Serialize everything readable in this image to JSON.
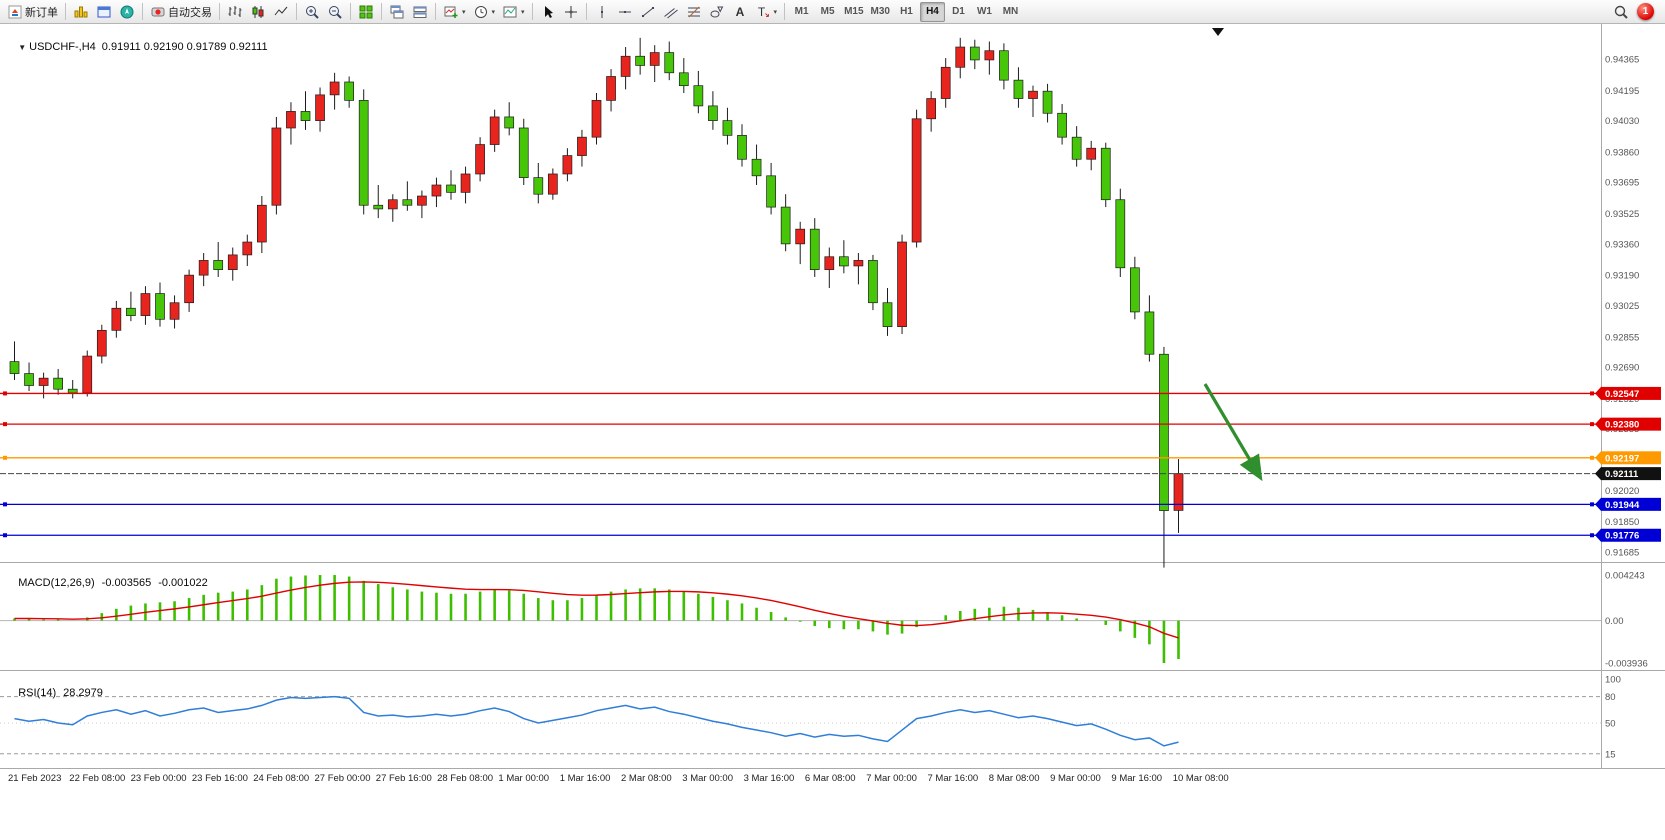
{
  "toolbar": {
    "groups": [
      {
        "items": [
          {
            "name": "new-order-button",
            "icon": "new-order-icon",
            "label": "新订单"
          }
        ]
      },
      {
        "items": [
          {
            "name": "market-watch-button",
            "icon": "market-watch-icon"
          },
          {
            "name": "data-window-button",
            "icon": "data-window-icon"
          },
          {
            "name": "navigator-button",
            "icon": "navigator-icon"
          }
        ]
      },
      {
        "items": [
          {
            "name": "autotrading-button",
            "icon": "autotrading-icon",
            "label": "自动交易"
          }
        ]
      },
      {
        "items": [
          {
            "name": "bar-chart-button",
            "icon": "bar-chart-icon"
          },
          {
            "name": "candlestick-chart-button",
            "icon": "candlestick-icon"
          },
          {
            "name": "line-chart-button",
            "icon": "line-chart-icon"
          }
        ]
      },
      {
        "items": [
          {
            "name": "zoom-in-button",
            "icon": "zoom-in-icon"
          },
          {
            "name": "zoom-out-button",
            "icon": "zoom-out-icon"
          }
        ]
      },
      {
        "items": [
          {
            "name": "tile-windows-button",
            "icon": "tile-windows-icon"
          }
        ]
      },
      {
        "items": [
          {
            "name": "arrange-windows-button",
            "icon": "arrange-windows-icon"
          },
          {
            "name": "cascade-windows-button",
            "icon": "cascade-windows-icon"
          }
        ]
      },
      {
        "items": [
          {
            "name": "new-chart-button",
            "icon": "new-chart-icon",
            "dropdown": true
          },
          {
            "name": "profiles-button",
            "icon": "clock-icon",
            "dropdown": true
          },
          {
            "name": "templates-button",
            "icon": "template-icon",
            "dropdown": true
          }
        ]
      },
      {
        "items": [
          {
            "name": "cursor-button",
            "icon": "cursor-icon"
          },
          {
            "name": "crosshair-button",
            "icon": "crosshair-icon"
          }
        ]
      },
      {
        "items": [
          {
            "name": "vertical-line-button",
            "icon": "vertical-line-icon"
          },
          {
            "name": "horizontal-line-button",
            "icon": "horizontal-line-icon"
          },
          {
            "name": "trendline-button",
            "icon": "trendline-icon"
          },
          {
            "name": "channel-button",
            "icon": "channel-icon"
          },
          {
            "name": "fibonacci-button",
            "icon": "fibonacci-icon"
          },
          {
            "name": "shapes-button",
            "icon": "shapes-icon"
          },
          {
            "name": "text-button",
            "icon": "text-icon"
          },
          {
            "name": "arrow-label-button",
            "icon": "label-icon",
            "dropdown": true
          }
        ]
      }
    ],
    "timeframes": {
      "labels": [
        "M1",
        "M5",
        "M15",
        "M30",
        "H1",
        "H4",
        "D1",
        "W1",
        "MN"
      ],
      "active": "H4"
    },
    "right": {
      "search_icon": "search-icon",
      "notification_count": "1"
    }
  },
  "chart": {
    "header": {
      "collapse_icon": "▼",
      "symbol": "USDCHF-,H4",
      "open": "0.91911",
      "high": "0.92190",
      "low": "0.91789",
      "close": "0.92111"
    },
    "price_axis": {
      "ticks": [
        "0.94365",
        "0.94195",
        "0.94030",
        "0.93860",
        "0.93695",
        "0.93525",
        "0.93360",
        "0.93190",
        "0.93025",
        "0.92855",
        "0.92690",
        "0.92520",
        "0.92355",
        "0.92185",
        "0.92020",
        "0.91850",
        "0.91685"
      ]
    },
    "levels": [
      {
        "price": 0.92547,
        "label": "0.92547",
        "color": "#e10000"
      },
      {
        "price": 0.9238,
        "label": "0.92380",
        "color": "#e10000"
      },
      {
        "price": 0.92197,
        "label": "0.92197",
        "color": "#ff9900"
      },
      {
        "price": 0.91944,
        "label": "0.91944",
        "color": "#0000d6"
      },
      {
        "price": 0.91776,
        "label": "0.91776",
        "color": "#0000d6"
      }
    ],
    "current_price": {
      "value": 0.92111,
      "label": "0.92111",
      "color": "#111111"
    },
    "annotations": {
      "arrow": {
        "type": "trend-arrow",
        "direction": "down-right",
        "color": "#2f8f2f"
      },
      "top_marker": {
        "symbol": "▼",
        "color": "#111111"
      }
    },
    "time_axis": [
      "21 Feb 2023",
      "22 Feb 08:00",
      "23 Feb 00:00",
      "23 Feb 16:00",
      "24 Feb 08:00",
      "27 Feb 00:00",
      "27 Feb 16:00",
      "28 Feb 08:00",
      "1 Mar 00:00",
      "1 Mar 16:00",
      "2 Mar 08:00",
      "3 Mar 00:00",
      "3 Mar 16:00",
      "6 Mar 08:00",
      "7 Mar 00:00",
      "7 Mar 16:00",
      "8 Mar 08:00",
      "9 Mar 00:00",
      "9 Mar 16:00",
      "10 Mar 08:00"
    ]
  },
  "indicators": {
    "macd": {
      "name": "MACD(12,26,9)",
      "main_value": "-0.003565",
      "signal_value": "-0.001022",
      "axis": [
        "0.004243",
        "0.00",
        "-0.003936"
      ]
    },
    "rsi": {
      "name": "RSI(14)",
      "value": "28.2979",
      "axis": [
        "100",
        "80",
        "50",
        "15"
      ]
    }
  },
  "chart_data": [
    {
      "type": "candlestick",
      "symbol": "USDCHF",
      "timeframe": "H4",
      "bull_color": "#e8241f",
      "bear_color": "#46c509",
      "price_range": [
        0.91685,
        0.94365
      ],
      "ohlc": [
        [
          0.9272,
          0.9283,
          0.9262,
          0.92655
        ],
        [
          0.92655,
          0.92715,
          0.9256,
          0.9259
        ],
        [
          0.9259,
          0.9266,
          0.9252,
          0.9263
        ],
        [
          0.9263,
          0.9268,
          0.9254,
          0.9257
        ],
        [
          0.9257,
          0.9262,
          0.9252,
          0.9255
        ],
        [
          0.9255,
          0.9278,
          0.9253,
          0.9275
        ],
        [
          0.9275,
          0.9292,
          0.9271,
          0.9289
        ],
        [
          0.9289,
          0.9305,
          0.9285,
          0.9301
        ],
        [
          0.9301,
          0.931,
          0.9294,
          0.9297
        ],
        [
          0.9297,
          0.9313,
          0.9292,
          0.9309
        ],
        [
          0.9309,
          0.9315,
          0.9291,
          0.9295
        ],
        [
          0.9295,
          0.9308,
          0.929,
          0.9304
        ],
        [
          0.9304,
          0.9322,
          0.9299,
          0.9319
        ],
        [
          0.9319,
          0.9331,
          0.9313,
          0.9327
        ],
        [
          0.9327,
          0.9337,
          0.9318,
          0.9322
        ],
        [
          0.9322,
          0.9334,
          0.9316,
          0.933
        ],
        [
          0.933,
          0.9341,
          0.9324,
          0.9337
        ],
        [
          0.9337,
          0.9362,
          0.9331,
          0.9357
        ],
        [
          0.9357,
          0.9405,
          0.9352,
          0.9399
        ],
        [
          0.9399,
          0.9413,
          0.939,
          0.9408
        ],
        [
          0.9408,
          0.9419,
          0.9398,
          0.9403
        ],
        [
          0.9403,
          0.9421,
          0.9397,
          0.9417
        ],
        [
          0.9417,
          0.9429,
          0.9409,
          0.9424
        ],
        [
          0.9424,
          0.9427,
          0.941,
          0.9414
        ],
        [
          0.9414,
          0.942,
          0.9352,
          0.9357
        ],
        [
          0.9357,
          0.9368,
          0.935,
          0.9355
        ],
        [
          0.9355,
          0.9363,
          0.9348,
          0.936
        ],
        [
          0.936,
          0.937,
          0.9354,
          0.9357
        ],
        [
          0.9357,
          0.9365,
          0.935,
          0.9362
        ],
        [
          0.9362,
          0.9372,
          0.9356,
          0.9368
        ],
        [
          0.9368,
          0.9376,
          0.936,
          0.9364
        ],
        [
          0.9364,
          0.9378,
          0.9358,
          0.9374
        ],
        [
          0.9374,
          0.9394,
          0.937,
          0.939
        ],
        [
          0.939,
          0.9409,
          0.9386,
          0.9405
        ],
        [
          0.9405,
          0.9413,
          0.9395,
          0.9399
        ],
        [
          0.9399,
          0.9404,
          0.9368,
          0.9372
        ],
        [
          0.9372,
          0.938,
          0.9358,
          0.9363
        ],
        [
          0.9363,
          0.9377,
          0.936,
          0.9374
        ],
        [
          0.9374,
          0.9388,
          0.937,
          0.9384
        ],
        [
          0.9384,
          0.9398,
          0.9378,
          0.9394
        ],
        [
          0.9394,
          0.9418,
          0.939,
          0.9414
        ],
        [
          0.9414,
          0.9431,
          0.9408,
          0.9427
        ],
        [
          0.9427,
          0.9443,
          0.942,
          0.9438
        ],
        [
          0.9438,
          0.9448,
          0.9428,
          0.9433
        ],
        [
          0.9433,
          0.9444,
          0.9424,
          0.944
        ],
        [
          0.944,
          0.9446,
          0.9425,
          0.9429
        ],
        [
          0.9429,
          0.9437,
          0.9418,
          0.9422
        ],
        [
          0.9422,
          0.943,
          0.9407,
          0.9411
        ],
        [
          0.9411,
          0.9419,
          0.9398,
          0.9403
        ],
        [
          0.9403,
          0.941,
          0.939,
          0.9395
        ],
        [
          0.9395,
          0.9401,
          0.9378,
          0.9382
        ],
        [
          0.9382,
          0.939,
          0.9368,
          0.9373
        ],
        [
          0.9373,
          0.938,
          0.9352,
          0.9356
        ],
        [
          0.9356,
          0.9363,
          0.9332,
          0.9336
        ],
        [
          0.9336,
          0.9348,
          0.9325,
          0.9344
        ],
        [
          0.9344,
          0.935,
          0.9318,
          0.9322
        ],
        [
          0.9322,
          0.9334,
          0.9312,
          0.9329
        ],
        [
          0.9329,
          0.9338,
          0.932,
          0.9324
        ],
        [
          0.9324,
          0.9331,
          0.9314,
          0.9327
        ],
        [
          0.9327,
          0.933,
          0.93,
          0.9304
        ],
        [
          0.9304,
          0.9312,
          0.9286,
          0.9291
        ],
        [
          0.9291,
          0.9341,
          0.9287,
          0.9337
        ],
        [
          0.9337,
          0.9409,
          0.9334,
          0.9404
        ],
        [
          0.9404,
          0.9419,
          0.9397,
          0.9415
        ],
        [
          0.9415,
          0.9437,
          0.941,
          0.9432
        ],
        [
          0.9432,
          0.9448,
          0.9426,
          0.9443
        ],
        [
          0.9443,
          0.9447,
          0.9431,
          0.9436
        ],
        [
          0.9436,
          0.9446,
          0.9428,
          0.9441
        ],
        [
          0.9441,
          0.9445,
          0.942,
          0.9425
        ],
        [
          0.9425,
          0.9432,
          0.941,
          0.9415
        ],
        [
          0.9415,
          0.9422,
          0.9405,
          0.9419
        ],
        [
          0.9419,
          0.9423,
          0.9402,
          0.9407
        ],
        [
          0.9407,
          0.9412,
          0.939,
          0.9394
        ],
        [
          0.9394,
          0.94,
          0.9378,
          0.9382
        ],
        [
          0.9382,
          0.9392,
          0.9376,
          0.9388
        ],
        [
          0.9388,
          0.9391,
          0.9356,
          0.936
        ],
        [
          0.936,
          0.9366,
          0.9318,
          0.9323
        ],
        [
          0.9323,
          0.9329,
          0.9295,
          0.9299
        ],
        [
          0.9299,
          0.9308,
          0.9272,
          0.9276
        ],
        [
          0.9276,
          0.928,
          0.916,
          0.9191
        ],
        [
          0.91911,
          0.9219,
          0.91789,
          0.92111
        ]
      ]
    },
    {
      "type": "bar",
      "name": "MACD histogram",
      "params": "12,26,9",
      "histogram_color": "#3dbf00",
      "signal_color": "#e00000",
      "current_main": -0.003565,
      "current_signal": -0.001022,
      "ylim": [
        -0.003936,
        0.004243
      ],
      "values": [
        0.0002,
        0.0002,
        0.0001,
        0.0001,
        0,
        0.0003,
        0.0007,
        0.0011,
        0.0014,
        0.0016,
        0.0017,
        0.0018,
        0.0021,
        0.0024,
        0.0026,
        0.0027,
        0.0029,
        0.0033,
        0.0039,
        0.0041,
        0.0042,
        0.00424,
        0.00424,
        0.0041,
        0.0037,
        0.0034,
        0.0031,
        0.0029,
        0.0027,
        0.0026,
        0.0025,
        0.0025,
        0.0027,
        0.0029,
        0.0028,
        0.0025,
        0.0021,
        0.0019,
        0.0019,
        0.0021,
        0.0024,
        0.0027,
        0.0029,
        0.003,
        0.003,
        0.0029,
        0.0027,
        0.0025,
        0.0022,
        0.0019,
        0.0016,
        0.0012,
        0.0008,
        0.0003,
        -0.0001,
        -0.0005,
        -0.0007,
        -0.0008,
        -0.0008,
        -0.001,
        -0.0013,
        -0.0012,
        -0.0006,
        0,
        0.0005,
        0.0009,
        0.0011,
        0.0012,
        0.0013,
        0.0012,
        0.001,
        0.0008,
        0.0005,
        0.0002,
        0,
        -0.0004,
        -0.001,
        -0.0016,
        -0.0022,
        -0.003936,
        -0.003565
      ]
    },
    {
      "type": "line",
      "name": "RSI",
      "period": 14,
      "current": 28.2979,
      "line_color": "#2f7ed8",
      "levels": [
        80,
        50,
        15
      ],
      "ylim": [
        0,
        100
      ],
      "values": [
        55,
        52,
        54,
        50,
        48,
        58,
        62,
        65,
        60,
        64,
        58,
        61,
        65,
        67,
        62,
        64,
        66,
        70,
        76,
        79,
        78,
        79,
        80,
        78,
        62,
        58,
        59,
        57,
        58,
        60,
        58,
        60,
        64,
        67,
        63,
        55,
        50,
        53,
        56,
        59,
        64,
        67,
        70,
        66,
        68,
        63,
        60,
        56,
        52,
        49,
        45,
        42,
        39,
        35,
        38,
        34,
        37,
        35,
        36,
        32,
        29,
        42,
        55,
        58,
        62,
        65,
        62,
        64,
        60,
        56,
        58,
        55,
        51,
        47,
        49,
        43,
        36,
        31,
        33,
        24,
        28.3
      ]
    }
  ]
}
